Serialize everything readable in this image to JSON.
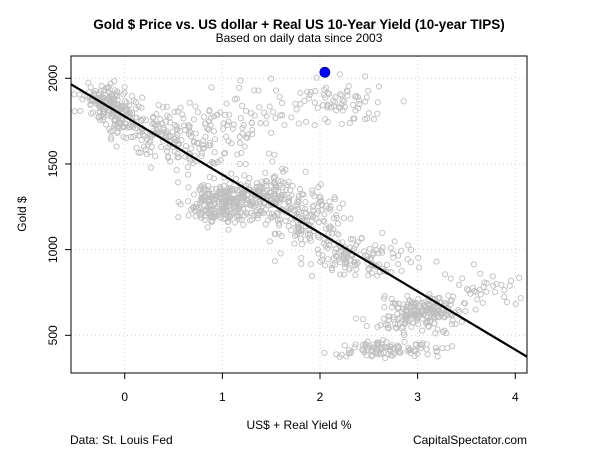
{
  "chart_data": {
    "type": "scatter",
    "title": "Gold $ Price vs. US dollar + Real US 10-Year Yield (10-year TIPS)",
    "subtitle": "Based on daily data since 2003",
    "xlabel": "US$ + Real Yield %",
    "ylabel": "Gold $",
    "xlim": [
      -0.55,
      4.12
    ],
    "ylim": [
      280,
      2130
    ],
    "x_ticks": [
      "0",
      "1",
      "2",
      "3",
      "4"
    ],
    "x_tick_values": [
      0,
      1,
      2,
      3,
      4
    ],
    "y_ticks": [
      "500",
      "1000",
      "1500",
      "2000"
    ],
    "y_tick_values": [
      500,
      1000,
      1500,
      2000
    ],
    "grid": true,
    "point_color": "#bebebe",
    "highlight_color": "#0000ff",
    "line_color": "#000000",
    "highlight_point": {
      "x": 2.05,
      "y": 2035
    },
    "regression_line": {
      "x": [
        -0.55,
        4.12
      ],
      "y": [
        1965,
        375
      ]
    },
    "scatter_clusters": [
      {
        "cx": -0.2,
        "cy": 1860,
        "sx": 0.12,
        "sy": 50,
        "n": 120
      },
      {
        "cx": 0.05,
        "cy": 1740,
        "sx": 0.12,
        "sy": 60,
        "n": 90
      },
      {
        "cx": 0.45,
        "cy": 1660,
        "sx": 0.2,
        "sy": 80,
        "n": 100
      },
      {
        "cx": 0.85,
        "cy": 1620,
        "sx": 0.25,
        "sy": 120,
        "n": 80
      },
      {
        "cx": 1.05,
        "cy": 1270,
        "sx": 0.2,
        "sy": 60,
        "n": 260
      },
      {
        "cx": 1.5,
        "cy": 1320,
        "sx": 0.25,
        "sy": 80,
        "n": 150
      },
      {
        "cx": 1.9,
        "cy": 1180,
        "sx": 0.2,
        "sy": 70,
        "n": 120
      },
      {
        "cx": 2.35,
        "cy": 950,
        "sx": 0.3,
        "sy": 60,
        "n": 130
      },
      {
        "cx": 3.05,
        "cy": 650,
        "sx": 0.2,
        "sy": 40,
        "n": 160
      },
      {
        "cx": 2.7,
        "cy": 420,
        "sx": 0.3,
        "sy": 25,
        "n": 100
      },
      {
        "cx": 2.2,
        "cy": 1860,
        "sx": 0.25,
        "sy": 70,
        "n": 70
      },
      {
        "cx": 1.4,
        "cy": 1820,
        "sx": 0.25,
        "sy": 90,
        "n": 40
      },
      {
        "cx": 3.6,
        "cy": 780,
        "sx": 0.25,
        "sy": 60,
        "n": 40
      },
      {
        "cx": 2.9,
        "cy": 560,
        "sx": 0.25,
        "sy": 30,
        "n": 40
      }
    ]
  },
  "footer": {
    "left": "Data: St. Louis Fed",
    "right": "CapitalSpectator.com"
  }
}
